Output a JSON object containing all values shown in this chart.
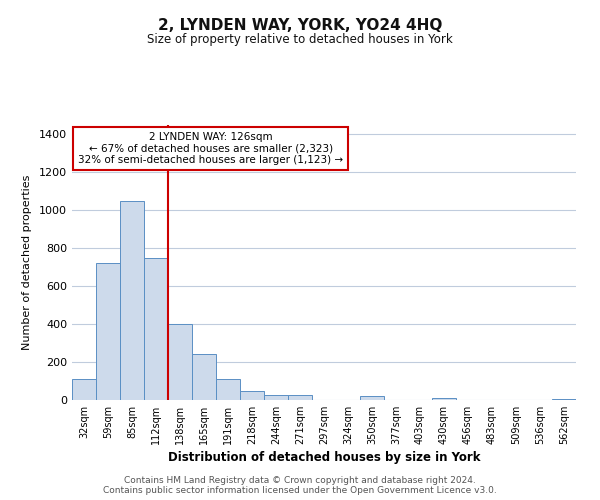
{
  "title": "2, LYNDEN WAY, YORK, YO24 4HQ",
  "subtitle": "Size of property relative to detached houses in York",
  "xlabel": "Distribution of detached houses by size in York",
  "ylabel": "Number of detached properties",
  "bar_color": "#cddaeb",
  "bar_edge_color": "#5a8fc4",
  "background_color": "#ffffff",
  "grid_color": "#c0ccdd",
  "categories": [
    "32sqm",
    "59sqm",
    "85sqm",
    "112sqm",
    "138sqm",
    "165sqm",
    "191sqm",
    "218sqm",
    "244sqm",
    "271sqm",
    "297sqm",
    "324sqm",
    "350sqm",
    "377sqm",
    "403sqm",
    "430sqm",
    "456sqm",
    "483sqm",
    "509sqm",
    "536sqm",
    "562sqm"
  ],
  "values": [
    110,
    720,
    1050,
    750,
    400,
    240,
    110,
    48,
    27,
    25,
    0,
    0,
    20,
    0,
    0,
    10,
    0,
    0,
    0,
    0,
    5
  ],
  "vline_x": 3.5,
  "vline_color": "#cc0000",
  "annotation_title": "2 LYNDEN WAY: 126sqm",
  "annotation_line1": "← 67% of detached houses are smaller (2,323)",
  "annotation_line2": "32% of semi-detached houses are larger (1,123) →",
  "annotation_box_color": "#ffffff",
  "annotation_box_edge": "#cc0000",
  "ylim": [
    0,
    1450
  ],
  "yticks": [
    0,
    200,
    400,
    600,
    800,
    1000,
    1200,
    1400
  ],
  "footer1": "Contains HM Land Registry data © Crown copyright and database right 2024.",
  "footer2": "Contains public sector information licensed under the Open Government Licence v3.0."
}
